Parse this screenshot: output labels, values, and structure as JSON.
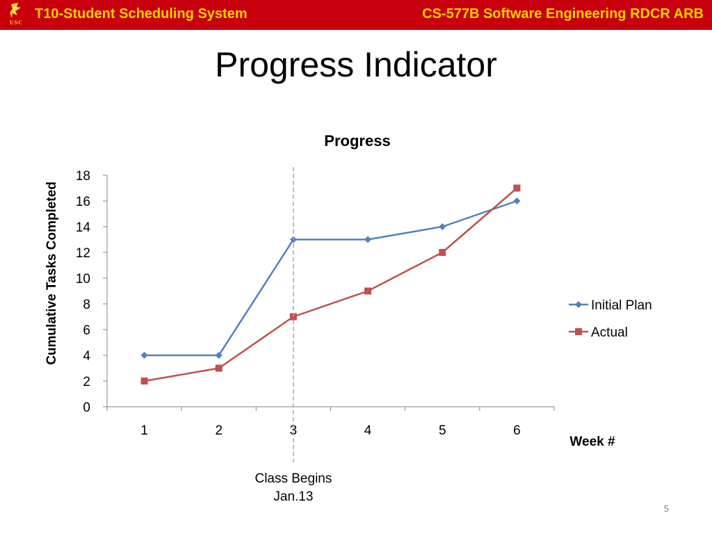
{
  "header": {
    "left_title": "T10-Student Scheduling System",
    "right_title": "CS-577B Software Engineering RDCR ARB",
    "logo_text": "USC",
    "bg_color": "#c8000e",
    "text_color": "#ffd200"
  },
  "slide": {
    "title": "Progress Indicator",
    "page_number": "5"
  },
  "chart_data": {
    "type": "line",
    "title": "Progress",
    "xlabel": "Week #",
    "ylabel": "Cumulative Tasks Completed",
    "categories": [
      "1",
      "2",
      "3",
      "4",
      "5",
      "6"
    ],
    "ylim": [
      0,
      18
    ],
    "yticks": [
      "0",
      "2",
      "4",
      "6",
      "8",
      "10",
      "12",
      "14",
      "16",
      "18"
    ],
    "grid": false,
    "legend_position": "right",
    "series": [
      {
        "name": "Initial Plan",
        "values": [
          4,
          4,
          13,
          13,
          14,
          16
        ],
        "color": "#4f81bd",
        "marker": "diamond"
      },
      {
        "name": "Actual",
        "values": [
          2,
          3,
          7,
          9,
          12,
          17
        ],
        "color": "#c0504d",
        "marker": "square"
      }
    ],
    "annotation": {
      "x_position": 2.5,
      "lines": [
        "Class Begins",
        "Jan.13"
      ],
      "color": "#8eaadb"
    }
  }
}
